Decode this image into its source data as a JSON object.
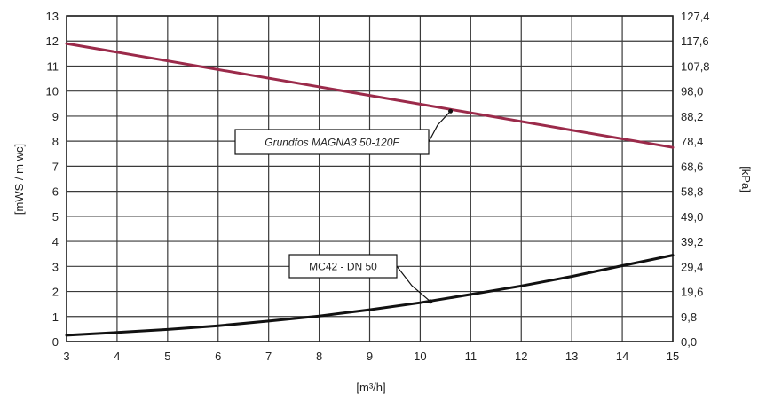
{
  "chart_data": {
    "type": "line",
    "xlabel": "[m³/h]",
    "ylabel": "[mWS / m wc]",
    "y2label": "[kPa]",
    "xlim": [
      3,
      15
    ],
    "ylim": [
      0,
      13
    ],
    "grid": true,
    "x_ticks": [
      "3",
      "4",
      "5",
      "6",
      "7",
      "8",
      "9",
      "10",
      "11",
      "12",
      "13",
      "14",
      "15"
    ],
    "y_ticks": [
      "0",
      "1",
      "2",
      "3",
      "4",
      "5",
      "6",
      "7",
      "8",
      "9",
      "10",
      "11",
      "12",
      "13"
    ],
    "y2_ticks": [
      "0,0",
      "9,8",
      "19,6",
      "29,4",
      "39,2",
      "49,0",
      "58,8",
      "68,6",
      "78,4",
      "88,2",
      "98,0",
      "107,8",
      "117,6",
      "127,4"
    ],
    "series": [
      {
        "name": "Grundfos MAGNA3 50-120F",
        "color": "#9b2a4a",
        "x": [
          3,
          15
        ],
        "y": [
          11.9,
          7.75
        ]
      },
      {
        "name": "MC42 - DN 50",
        "color": "#111111",
        "x": [
          3,
          4,
          5,
          6,
          7,
          8,
          9,
          10,
          11,
          12,
          13,
          14,
          15
        ],
        "y": [
          0.25,
          0.36,
          0.48,
          0.63,
          0.82,
          1.02,
          1.27,
          1.55,
          1.88,
          2.22,
          2.6,
          3.03,
          3.45
        ]
      }
    ],
    "annotations": [
      {
        "text": "Grundfos MAGNA3 50-120F",
        "italic": true,
        "point": [
          10.6,
          9.2
        ]
      },
      {
        "text": "MC42 - DN 50",
        "italic": false,
        "point": [
          10.2,
          1.6
        ]
      }
    ]
  }
}
